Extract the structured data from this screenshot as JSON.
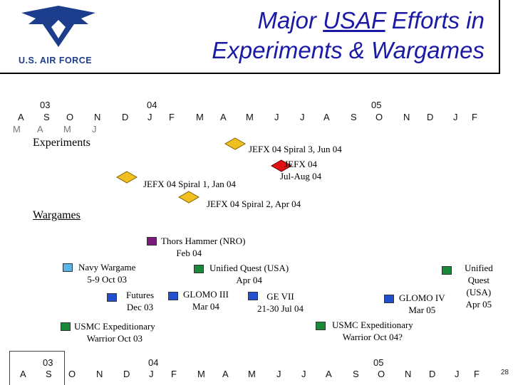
{
  "header": {
    "logo_text": "U.S. AIR FORCE",
    "title_pre": "Major ",
    "title_underlined": "USAF",
    "title_post": " Efforts in",
    "title_line2": "Experiments & Wargames"
  },
  "timeline": {
    "years": [
      "03",
      "04",
      "05"
    ],
    "months": [
      "A",
      "S",
      "O",
      "N",
      "D",
      "J",
      "F",
      "M",
      "A",
      "M",
      "J",
      "J",
      "A",
      "S",
      "O",
      "N",
      "D",
      "J",
      "F"
    ],
    "ghost_months": [
      "M",
      "A",
      "M",
      "J"
    ]
  },
  "sections": {
    "experiments": "Experiments",
    "wargames": "Wargames"
  },
  "experiments": {
    "spiral3": "JEFX 04 Spiral 3, Jun 04",
    "jefx04_l1": "JEFX 04",
    "jefx04_l2": "Jul-Aug 04",
    "spiral1": "JEFX 04 Spiral 1, Jan 04",
    "spiral2": "JEFX 04 Spiral 2, Apr 04"
  },
  "wargames": {
    "thors_l1": "Thors Hammer (NRO)",
    "thors_l2": "Feb 04",
    "navy_l1": "Navy Wargame",
    "navy_l2": "5-9 Oct 03",
    "uq_usa_l1": "Unified Quest (USA)",
    "uq_usa_l2": "Apr 04",
    "uq05_l1": "Unified",
    "uq05_l2": "Quest",
    "uq05_l3": "(USA)",
    "uq05_l4": "Apr 05",
    "futures_l1": "Futures",
    "futures_l2": "Dec 03",
    "glomo3_l1": "GLOMO III",
    "glomo3_l2": "Mar 04",
    "ge7_l1": "GE VII",
    "ge7_l2": "21-30 Jul 04",
    "glomo4_l1": "GLOMO IV",
    "glomo4_l2": "Mar 05",
    "usmc03_l1": "USMC Expeditionary",
    "usmc03_l2": "Warrior Oct 03",
    "usmc04_l1": "USMC Expeditionary",
    "usmc04_l2": "Warrior Oct 04?"
  },
  "page_number": "28",
  "colors": {
    "title": "#1a1aa6",
    "diamond_gold": "#f0c020",
    "diamond_red": "#e01010",
    "purple": "#7a1a7a",
    "light_blue": "#5ab4e8",
    "blue": "#2050d0",
    "green": "#1a8a3a"
  }
}
